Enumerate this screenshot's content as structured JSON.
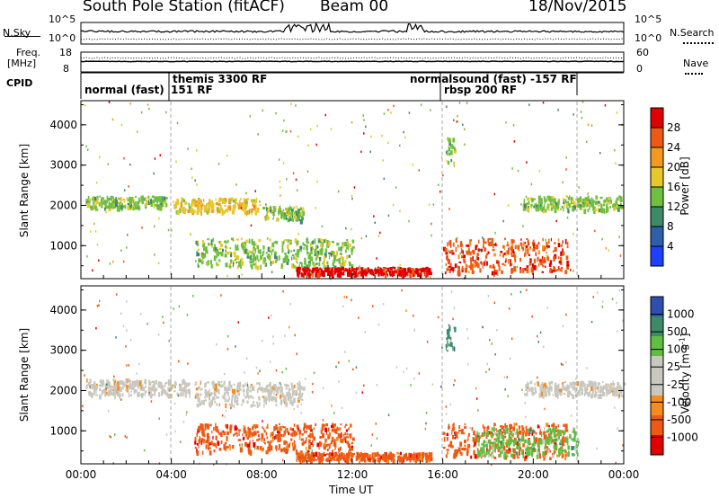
{
  "header": {
    "station": "South Pole Station (fitACF)",
    "beam": "Beam 00",
    "date": "18/Nov/2015"
  },
  "noise_panel": {
    "left_label": "N.Sky",
    "right_label": "N.Search",
    "left_ticks": [
      "10^5",
      "10^0"
    ],
    "right_ticks": [
      "10^5",
      "10^0"
    ]
  },
  "freq_panel": {
    "left_label_line1": "Freq.",
    "left_label_line2": "[MHz]",
    "right_label": "Nave",
    "left_ticks": [
      "18",
      "8"
    ],
    "right_ticks": [
      "60",
      "0"
    ]
  },
  "cpid": {
    "label": "CPID",
    "modes": [
      {
        "text": "normal (fast)",
        "row": 1
      },
      {
        "text": "151 RF",
        "row": 1
      },
      {
        "text": "themis 3300 RF",
        "row": 0
      },
      {
        "text": "normalsound (fast)  -157 RF",
        "row": 0
      },
      {
        "text": "rbsp 200 RF",
        "row": 1
      }
    ]
  },
  "power_panel": {
    "ylabel": "Slant Range [km]",
    "yticks": [
      "4000",
      "3000",
      "2000",
      "1000"
    ],
    "colorbar_label": "Power [dB]",
    "colorbar_ticks": [
      "28",
      "24",
      "20",
      "16",
      "12",
      "8",
      "4"
    ]
  },
  "velocity_panel": {
    "ylabel": "Slant Range [km]",
    "yticks": [
      "4000",
      "3000",
      "2000",
      "1000"
    ],
    "colorbar_label": "Velocity [m s",
    "colorbar_label_sup": "-1",
    "colorbar_label_end": "]",
    "colorbar_ticks": [
      "1000",
      "500",
      "100",
      "25",
      "-25",
      "-100",
      "-500",
      "-1000"
    ]
  },
  "xaxis": {
    "label": "Time UT",
    "ticks": [
      "00:00",
      "04:00",
      "08:00",
      "12:00",
      "16:00",
      "20:00",
      "00:00"
    ]
  },
  "chart_data": {
    "type": "heatmap",
    "title": "South Pole Station (fitACF)  Beam 00  18/Nov/2015",
    "xlabel": "Time UT",
    "ylabel": "Slant Range [km]",
    "x_ticks": [
      "00:00",
      "04:00",
      "08:00",
      "12:00",
      "16:00",
      "20:00",
      "00:00"
    ],
    "xlim_hours": [
      0,
      24
    ],
    "ylim_km": [
      180,
      4600
    ],
    "mode_change_hours": [
      3.9,
      16.0,
      21.8
    ],
    "power_colorscale_db": [
      4,
      8,
      12,
      16,
      20,
      24,
      28
    ],
    "velocity_colorscale_ms": [
      -1000,
      -500,
      -100,
      -25,
      25,
      100,
      500,
      1000
    ],
    "power_features": [
      {
        "t0": 0.2,
        "t1": 3.8,
        "r0": 1950,
        "r1": 2250,
        "level": 12
      },
      {
        "t0": 4.1,
        "t1": 7.8,
        "r0": 1850,
        "r1": 2200,
        "level": 16
      },
      {
        "t0": 8.0,
        "t1": 9.8,
        "r0": 1650,
        "r1": 2000,
        "level": 12
      },
      {
        "t0": 5.0,
        "t1": 12.0,
        "r0": 500,
        "r1": 1200,
        "level": 12
      },
      {
        "t0": 9.5,
        "t1": 15.5,
        "r0": 300,
        "r1": 480,
        "level": 28
      },
      {
        "t0": 16.0,
        "t1": 21.5,
        "r0": 350,
        "r1": 1200,
        "level": 24
      },
      {
        "t0": 16.1,
        "t1": 16.5,
        "r0": 3000,
        "r1": 3700,
        "level": 12
      },
      {
        "t0": 19.5,
        "t1": 24.0,
        "r0": 1900,
        "r1": 2250,
        "level": 12
      }
    ],
    "velocity_features": [
      {
        "t0": 0.2,
        "t1": 4.8,
        "r0": 1900,
        "r1": 2300,
        "v": 0
      },
      {
        "t0": 5.0,
        "t1": 9.8,
        "r0": 1650,
        "r1": 2250,
        "v": 0
      },
      {
        "t0": 5.0,
        "t1": 12.0,
        "r0": 500,
        "r1": 1200,
        "v": -200
      },
      {
        "t0": 9.5,
        "t1": 15.5,
        "r0": 300,
        "r1": 480,
        "v": -200
      },
      {
        "t0": 16.0,
        "t1": 21.5,
        "r0": 350,
        "r1": 1200,
        "v": -200
      },
      {
        "t0": 17.5,
        "t1": 22.0,
        "r0": 400,
        "r1": 1100,
        "v": 300
      },
      {
        "t0": 16.1,
        "t1": 16.5,
        "r0": 3000,
        "r1": 3700,
        "v": 800
      },
      {
        "t0": 19.5,
        "t1": 24.0,
        "r0": 1900,
        "r1": 2250,
        "v": 0
      }
    ]
  }
}
